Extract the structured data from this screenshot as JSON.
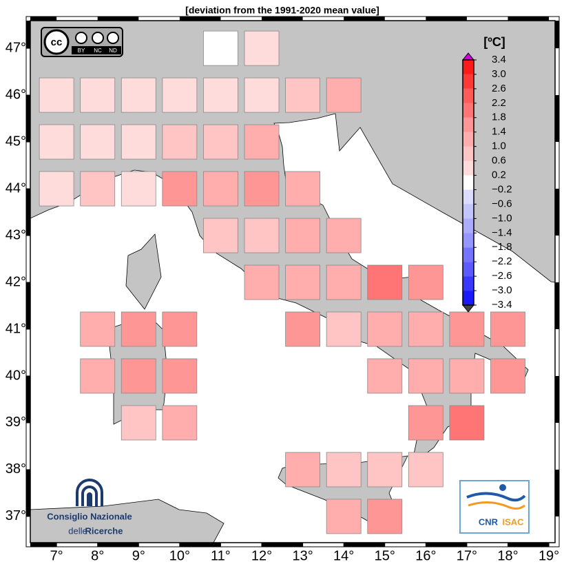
{
  "map": {
    "title": "[deviation from the 1991-2020 mean value]",
    "lonlim": [
      6.36,
      19.15
    ],
    "latlim": [
      36.44,
      47.59
    ],
    "lon_ticks": [
      {
        "value": 7,
        "label": "7°"
      },
      {
        "value": 8,
        "label": "8°"
      },
      {
        "value": 9,
        "label": "9°"
      },
      {
        "value": 10,
        "label": "10°"
      },
      {
        "value": 11,
        "label": "11°"
      },
      {
        "value": 12,
        "label": "12°"
      },
      {
        "value": 13,
        "label": "13°"
      },
      {
        "value": 14,
        "label": "14°"
      },
      {
        "value": 15,
        "label": "15°"
      },
      {
        "value": 16,
        "label": "16°"
      },
      {
        "value": 17,
        "label": "17°"
      },
      {
        "value": 18,
        "label": "18°"
      },
      {
        "value": 19,
        "label": "19°"
      }
    ],
    "lat_ticks": [
      {
        "value": 47,
        "label": "47°"
      },
      {
        "value": 46,
        "label": "46°"
      },
      {
        "value": 45,
        "label": "45°"
      },
      {
        "value": 44,
        "label": "44°"
      },
      {
        "value": 43,
        "label": "43°"
      },
      {
        "value": 42,
        "label": "42°"
      },
      {
        "value": 41,
        "label": "41°"
      },
      {
        "value": 40,
        "label": "40°"
      },
      {
        "value": 39,
        "label": "39°"
      },
      {
        "value": 38,
        "label": "38°"
      },
      {
        "value": 37,
        "label": "37°"
      }
    ],
    "cells": [
      {
        "lon": 11,
        "lat": 47,
        "value": 0
      },
      {
        "lon": 12,
        "lat": 47,
        "value": 0.4
      },
      {
        "lon": 7,
        "lat": 46,
        "value": 0.4
      },
      {
        "lon": 8,
        "lat": 46,
        "value": 0.4
      },
      {
        "lon": 9,
        "lat": 46,
        "value": 0.4
      },
      {
        "lon": 10,
        "lat": 46,
        "value": 0.4
      },
      {
        "lon": 11,
        "lat": 46,
        "value": 0.4
      },
      {
        "lon": 12,
        "lat": 46,
        "value": 0.4
      },
      {
        "lon": 13,
        "lat": 46,
        "value": 0.8
      },
      {
        "lon": 14,
        "lat": 46,
        "value": 1.2
      },
      {
        "lon": 7,
        "lat": 45,
        "value": 0.4
      },
      {
        "lon": 8,
        "lat": 45,
        "value": 0.4
      },
      {
        "lon": 9,
        "lat": 45,
        "value": 0.4
      },
      {
        "lon": 10,
        "lat": 45,
        "value": 0.8
      },
      {
        "lon": 11,
        "lat": 45,
        "value": 0.8
      },
      {
        "lon": 12,
        "lat": 45,
        "value": 1.2
      },
      {
        "lon": 7,
        "lat": 44,
        "value": 0.4
      },
      {
        "lon": 8,
        "lat": 44,
        "value": 0.8
      },
      {
        "lon": 9,
        "lat": 44,
        "value": 0.4
      },
      {
        "lon": 10,
        "lat": 44,
        "value": 1.6
      },
      {
        "lon": 11,
        "lat": 44,
        "value": 1.2
      },
      {
        "lon": 12,
        "lat": 44,
        "value": 1.6
      },
      {
        "lon": 13,
        "lat": 44,
        "value": 1.2
      },
      {
        "lon": 11,
        "lat": 43,
        "value": 0.8
      },
      {
        "lon": 12,
        "lat": 43,
        "value": 0.8
      },
      {
        "lon": 13,
        "lat": 43,
        "value": 1.2
      },
      {
        "lon": 14,
        "lat": 43,
        "value": 1.2
      },
      {
        "lon": 12,
        "lat": 42,
        "value": 1.2
      },
      {
        "lon": 13,
        "lat": 42,
        "value": 1.2
      },
      {
        "lon": 14,
        "lat": 42,
        "value": 1.2
      },
      {
        "lon": 15,
        "lat": 42,
        "value": 2.0
      },
      {
        "lon": 16,
        "lat": 42,
        "value": 1.6
      },
      {
        "lon": 8,
        "lat": 41,
        "value": 1.2
      },
      {
        "lon": 9,
        "lat": 41,
        "value": 1.6
      },
      {
        "lon": 10,
        "lat": 41,
        "value": 1.6
      },
      {
        "lon": 13,
        "lat": 41,
        "value": 1.6
      },
      {
        "lon": 14,
        "lat": 41,
        "value": 0.8
      },
      {
        "lon": 15,
        "lat": 41,
        "value": 1.2
      },
      {
        "lon": 16,
        "lat": 41,
        "value": 1.2
      },
      {
        "lon": 17,
        "lat": 41,
        "value": 1.6
      },
      {
        "lon": 18,
        "lat": 41,
        "value": 1.6
      },
      {
        "lon": 8,
        "lat": 40,
        "value": 1.2
      },
      {
        "lon": 9,
        "lat": 40,
        "value": 1.6
      },
      {
        "lon": 10,
        "lat": 40,
        "value": 1.6
      },
      {
        "lon": 15,
        "lat": 40,
        "value": 1.2
      },
      {
        "lon": 16,
        "lat": 40,
        "value": 1.2
      },
      {
        "lon": 17,
        "lat": 40,
        "value": 1.2
      },
      {
        "lon": 18,
        "lat": 40,
        "value": 1.6
      },
      {
        "lon": 9,
        "lat": 39,
        "value": 0.8
      },
      {
        "lon": 10,
        "lat": 39,
        "value": 1.2
      },
      {
        "lon": 16,
        "lat": 39,
        "value": 1.6
      },
      {
        "lon": 17,
        "lat": 39,
        "value": 2.0
      },
      {
        "lon": 13,
        "lat": 38,
        "value": 1.2
      },
      {
        "lon": 14,
        "lat": 38,
        "value": 0.8
      },
      {
        "lon": 15,
        "lat": 38,
        "value": 0.8
      },
      {
        "lon": 16,
        "lat": 38,
        "value": 0.8
      },
      {
        "lon": 14,
        "lat": 37,
        "value": 1.2
      },
      {
        "lon": 15,
        "lat": 37,
        "value": 1.6
      }
    ],
    "colorbar": {
      "unit": "[ºC]",
      "ticks": [
        3.4,
        {
          "value": 3,
          "label": "3.0"
        },
        2.6,
        2.2,
        1.8,
        1.4,
        {
          "value": 1,
          "label": "1.0"
        },
        0.6,
        0.2,
        {
          "value": -0.2,
          "label": "−0.2"
        },
        {
          "value": -0.6,
          "label": "−0.6"
        },
        {
          "value": -1,
          "label": "−1.0"
        },
        {
          "value": -1.4,
          "label": "−1.4"
        },
        {
          "value": -1.8,
          "label": "−1.8"
        },
        {
          "value": -2.2,
          "label": "−2.2"
        },
        {
          "value": -2.6,
          "label": "−2.6"
        },
        {
          "value": -3,
          "label": "−3.0"
        },
        {
          "value": -3.4,
          "label": "−3.4"
        }
      ],
      "colors": [
        "#ff1a1a",
        "#ff3838",
        "#ff5b5b",
        "#ff7474",
        "#ff9696",
        "#ffadad",
        "#ffc4c4",
        "#ffdcdc",
        "#ffffff",
        "#dcdcff",
        "#c4c4ff",
        "#adadff",
        "#9696ff",
        "#7474ff",
        "#5b5bff",
        "#3838ff",
        "#1a1aff"
      ]
    }
  },
  "logos": {
    "cc": {
      "mark": "cc",
      "terms": [
        "BY",
        "NC",
        "ND"
      ]
    },
    "cnr": {
      "line1": "Consiglio Nazionale",
      "line2_a": "delle",
      "line2_b": "Ricerche"
    },
    "isac": {
      "left": "CNR",
      "right": "ISAC"
    }
  }
}
